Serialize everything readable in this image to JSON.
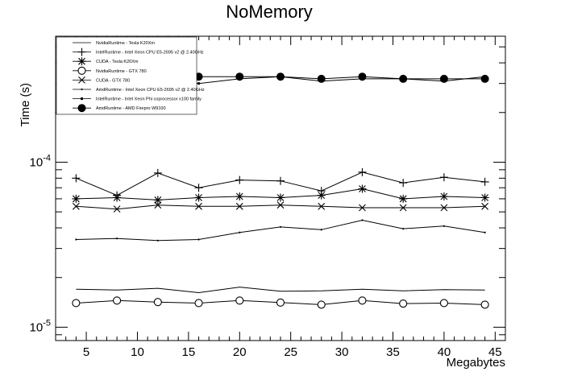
{
  "chart_data": {
    "type": "line",
    "title": "NoMemory",
    "xlabel": "Megabytes",
    "ylabel": "Time (s)",
    "xlim": [
      2,
      46
    ],
    "ylim": [
      8.3e-06,
      0.00058
    ],
    "yscale": "log",
    "x_ticks": [
      5,
      10,
      15,
      20,
      25,
      30,
      35,
      40,
      45
    ],
    "y_ticks": [
      {
        "value": 0.0001,
        "base": "10",
        "exp": "-4"
      },
      {
        "value": 1e-05,
        "base": "10",
        "exp": "-5"
      }
    ],
    "legend_position": "top-left",
    "grid": false,
    "x": [
      4,
      8,
      12,
      16,
      20,
      24,
      28,
      32,
      36,
      40,
      44
    ],
    "series": [
      {
        "name": "NvidiaRuntime - Tesla K20Xm",
        "marker": "none",
        "values": [
          1.7e-05,
          1.68e-05,
          1.72e-05,
          1.62e-05,
          1.75e-05,
          1.65e-05,
          1.66e-05,
          1.7e-05,
          1.66e-05,
          1.69e-05,
          1.68e-05
        ]
      },
      {
        "name": "IntelRuntime - Intel Xeon CPU E5-2695 v2 @ 2.40GHz",
        "marker": "plus",
        "values": [
          8e-05,
          6.3e-05,
          8.6e-05,
          7e-05,
          7.8e-05,
          7.7e-05,
          6.7e-05,
          8.7e-05,
          7.5e-05,
          8.1e-05,
          7.6e-05
        ]
      },
      {
        "name": "CUDA - Tesla K20Xm",
        "marker": "star",
        "values": [
          6e-05,
          6.1e-05,
          5.9e-05,
          6.1e-05,
          6.2e-05,
          6.1e-05,
          6.3e-05,
          6.9e-05,
          6e-05,
          6.2e-05,
          6.1e-05
        ]
      },
      {
        "name": "NvidiaRuntime - GTX 780",
        "marker": "circle-open",
        "values": [
          1.4e-05,
          1.45e-05,
          1.42e-05,
          1.4e-05,
          1.45e-05,
          1.41e-05,
          1.37e-05,
          1.45e-05,
          1.39e-05,
          1.4e-05,
          1.37e-05
        ]
      },
      {
        "name": "CUDA - GTX 780",
        "marker": "cross",
        "values": [
          5.4e-05,
          5.2e-05,
          5.5e-05,
          5.4e-05,
          5.4e-05,
          5.5e-05,
          5.4e-05,
          5.3e-05,
          5.3e-05,
          5.3e-05,
          5.4e-05
        ]
      },
      {
        "name": "AmdRuntime - Intel Xeon CPU E5-2695 v2 @ 2.40GHz",
        "marker": "dot",
        "values": [
          3.4e-05,
          3.45e-05,
          3.35e-05,
          3.4e-05,
          3.75e-05,
          4.05e-05,
          3.9e-05,
          4.45e-05,
          3.95e-05,
          4.1e-05,
          3.75e-05
        ]
      },
      {
        "name": "IntelRuntime - Intel Xeon Phi coprocessor x100 family",
        "marker": "square-small",
        "values": [
          0.0003,
          0.00031,
          0.00032,
          0.0003,
          0.00032,
          0.00033,
          0.00031,
          0.00032,
          0.00032,
          0.00031,
          0.00033
        ]
      },
      {
        "name": "AmdRuntime - AMD Firepro W9100",
        "marker": "circle-filled",
        "values": [
          0.00033,
          0.00033,
          0.00033,
          0.00033,
          0.00033,
          0.00033,
          0.00032,
          0.00033,
          0.00032,
          0.00032,
          0.00032
        ]
      }
    ]
  }
}
